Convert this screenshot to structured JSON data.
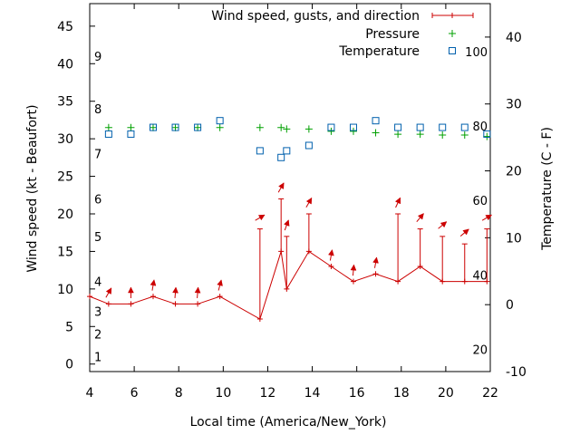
{
  "chart_data": {
    "type": "line",
    "xlabel": "Local time (America/New_York)",
    "ylabel_left": "Wind speed (kt - Beaufort)",
    "ylabel_right": "Temperature (C - F)",
    "xlim": [
      4,
      22
    ],
    "ylim_left": [
      -1,
      48
    ],
    "ylim_right": [
      -10,
      45
    ],
    "x_ticks": [
      "4",
      "6",
      "8",
      "10",
      "12",
      "14",
      "16",
      "18",
      "20",
      "22"
    ],
    "y_left_ticks": [
      "0",
      "5",
      "10",
      "15",
      "20",
      "25",
      "30",
      "35",
      "40",
      "45"
    ],
    "y_right_ticks": [
      "-10",
      "0",
      "10",
      "20",
      "30",
      "40"
    ],
    "beaufort_labels": [
      {
        "label": "1",
        "value": 1
      },
      {
        "label": "2",
        "value": 4
      },
      {
        "label": "3",
        "value": 7
      },
      {
        "label": "4",
        "value": 11
      },
      {
        "label": "5",
        "value": 17
      },
      {
        "label": "6",
        "value": 22
      },
      {
        "label": "7",
        "value": 28
      },
      {
        "label": "8",
        "value": 34
      },
      {
        "label": "9",
        "value": 41
      }
    ],
    "fahrenheit_labels": [
      {
        "label": "20",
        "value": -6.7
      },
      {
        "label": "40",
        "value": 4.4
      },
      {
        "label": "60",
        "value": 15.6
      },
      {
        "label": "80",
        "value": 26.7
      },
      {
        "label": "100",
        "value": 37.8
      }
    ],
    "legend": [
      {
        "name": "Wind speed, gusts, and direction",
        "color": "#cc0000",
        "marker": "line-plus"
      },
      {
        "name": "Pressure",
        "color": "#00a000",
        "marker": "plus"
      },
      {
        "name": "Temperature",
        "color": "#0060ad",
        "marker": "square"
      }
    ],
    "wind": {
      "color": "#cc0000",
      "x": [
        4,
        4.85,
        5.85,
        6.85,
        7.85,
        8.85,
        9.85,
        11.65,
        12.6,
        12.85,
        13.85,
        14.85,
        15.85,
        16.85,
        17.85,
        18.85,
        19.85,
        20.85,
        21.85
      ],
      "speed": [
        9,
        8,
        8,
        9,
        8,
        8,
        9,
        6,
        15,
        10,
        15,
        13,
        11,
        12,
        11,
        13,
        11,
        11,
        11
      ],
      "gust": [
        null,
        null,
        null,
        null,
        null,
        null,
        null,
        18,
        22,
        17,
        20,
        null,
        null,
        null,
        20,
        18,
        17,
        16,
        18
      ],
      "arrow_angle_deg": [
        null,
        30,
        0,
        10,
        5,
        5,
        15,
        60,
        30,
        20,
        30,
        10,
        5,
        10,
        25,
        40,
        50,
        50,
        60
      ]
    },
    "pressure": {
      "color": "#00a000",
      "x": [
        4.85,
        5.85,
        6.85,
        7.85,
        8.85,
        9.85,
        11.65,
        12.6,
        12.85,
        13.85,
        14.85,
        15.85,
        16.85,
        17.85,
        18.85,
        19.85,
        20.85,
        21.85
      ],
      "y": [
        31.5,
        31.5,
        31.5,
        31.5,
        31.5,
        31.5,
        31.5,
        31.5,
        31.3,
        31.3,
        31.0,
        31.0,
        30.8,
        30.6,
        30.6,
        30.5,
        30.5,
        30.3
      ]
    },
    "temperature": {
      "color": "#0060ad",
      "x": [
        4.85,
        5.85,
        6.85,
        7.85,
        8.85,
        9.85,
        11.65,
        12.6,
        12.85,
        13.85,
        14.85,
        15.85,
        16.85,
        17.85,
        18.85,
        19.85,
        20.85,
        21.85
      ],
      "y": [
        25.5,
        25.5,
        26.5,
        26.5,
        26.5,
        27.5,
        23.0,
        22.0,
        23.0,
        23.8,
        26.5,
        26.5,
        27.5,
        26.5,
        26.5,
        26.5,
        26.5,
        25.5
      ]
    }
  }
}
